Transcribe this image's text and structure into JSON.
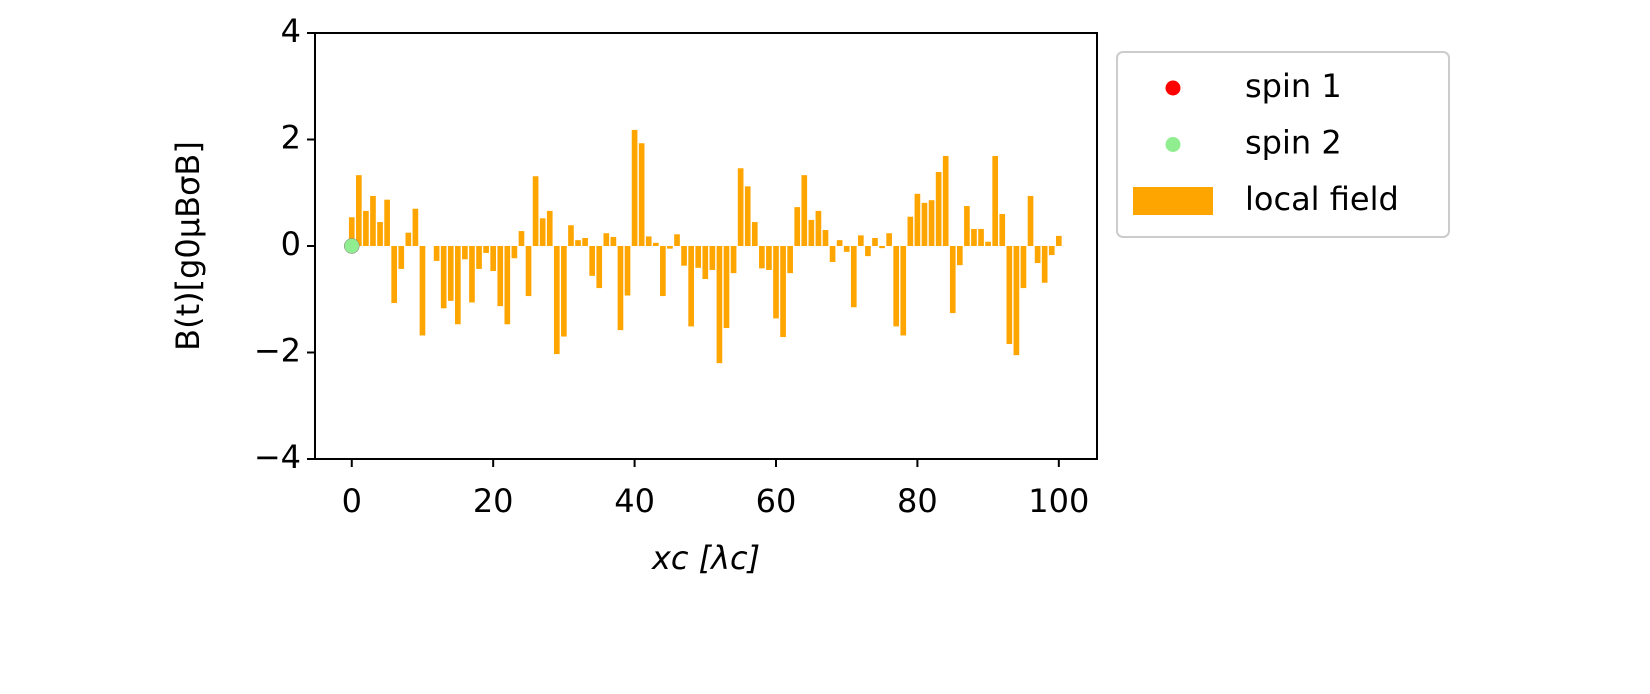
{
  "chart_data": {
    "type": "bar",
    "x_label": "xc [λc]",
    "y_label": "B(t)[g0μBσB]",
    "xlim": [
      -5.2,
      105.4
    ],
    "ylim": [
      -4,
      4
    ],
    "xticks": [
      0,
      20,
      40,
      60,
      80,
      100
    ],
    "yticks": [
      {
        "value": -4,
        "label": "−4"
      },
      {
        "value": -2,
        "label": "−2"
      },
      0,
      2,
      4
    ],
    "grid": false,
    "legend": "outside right",
    "series": [
      {
        "name": "spin 1",
        "type": "scatter",
        "color": "#ff0000",
        "x": [
          0
        ],
        "values": [
          0
        ]
      },
      {
        "name": "spin 2",
        "type": "scatter",
        "color": "#90ee90",
        "x": [
          0
        ],
        "values": [
          0
        ]
      },
      {
        "name": "local field",
        "type": "bar",
        "color": "#ffa500",
        "x": [
          0,
          1,
          2,
          3,
          4,
          5,
          6,
          7,
          8,
          9,
          10,
          11,
          12,
          13,
          14,
          15,
          16,
          17,
          18,
          19,
          20,
          21,
          22,
          23,
          24,
          25,
          26,
          27,
          28,
          29,
          30,
          31,
          32,
          33,
          34,
          35,
          36,
          37,
          38,
          39,
          40,
          41,
          42,
          43,
          44,
          45,
          46,
          47,
          48,
          49,
          50,
          51,
          52,
          53,
          54,
          55,
          56,
          57,
          58,
          59,
          60,
          61,
          62,
          63,
          64,
          65,
          66,
          67,
          68,
          69,
          70,
          71,
          72,
          73,
          74,
          75,
          76,
          77,
          78,
          79,
          80,
          81,
          82,
          83,
          84,
          85,
          86,
          87,
          88,
          89,
          90,
          91,
          92,
          93,
          94,
          95,
          96,
          97,
          98,
          99,
          100
        ],
        "values": [
          0.54,
          1.33,
          0.66,
          0.94,
          0.45,
          0.87,
          -1.07,
          -0.43,
          0.25,
          0.7,
          -1.68,
          0,
          -0.28,
          -1.17,
          -1.03,
          -1.47,
          -0.25,
          -1.06,
          -0.43,
          -0.13,
          -0.47,
          -1.13,
          -1.47,
          -0.23,
          0.28,
          -0.94,
          1.31,
          0.52,
          0.66,
          -2.03,
          -1.7,
          0.39,
          0.11,
          0.15,
          -0.56,
          -0.79,
          0.24,
          0.17,
          -1.58,
          -0.93,
          2.18,
          1.93,
          0.18,
          0.06,
          -0.94,
          -0.05,
          0.22,
          -0.37,
          -1.51,
          -0.41,
          -0.62,
          -0.45,
          -2.2,
          -1.54,
          -0.51,
          1.46,
          1.12,
          0.45,
          -0.42,
          -0.45,
          -1.36,
          -1.71,
          -0.51,
          0.73,
          1.33,
          0.49,
          0.66,
          0.3,
          -0.3,
          0.11,
          -0.11,
          -1.15,
          0.2,
          -0.19,
          0.15,
          -0.04,
          0.24,
          -1.51,
          -1.68,
          0.55,
          0.98,
          0.81,
          0.86,
          1.39,
          1.69,
          -1.26,
          -0.36,
          0.75,
          0.32,
          0.32,
          0.08,
          1.69,
          0.6,
          -1.84,
          -2.05,
          -0.79,
          0.94,
          -0.32,
          -0.69,
          -0.17,
          0.19
        ]
      }
    ]
  }
}
